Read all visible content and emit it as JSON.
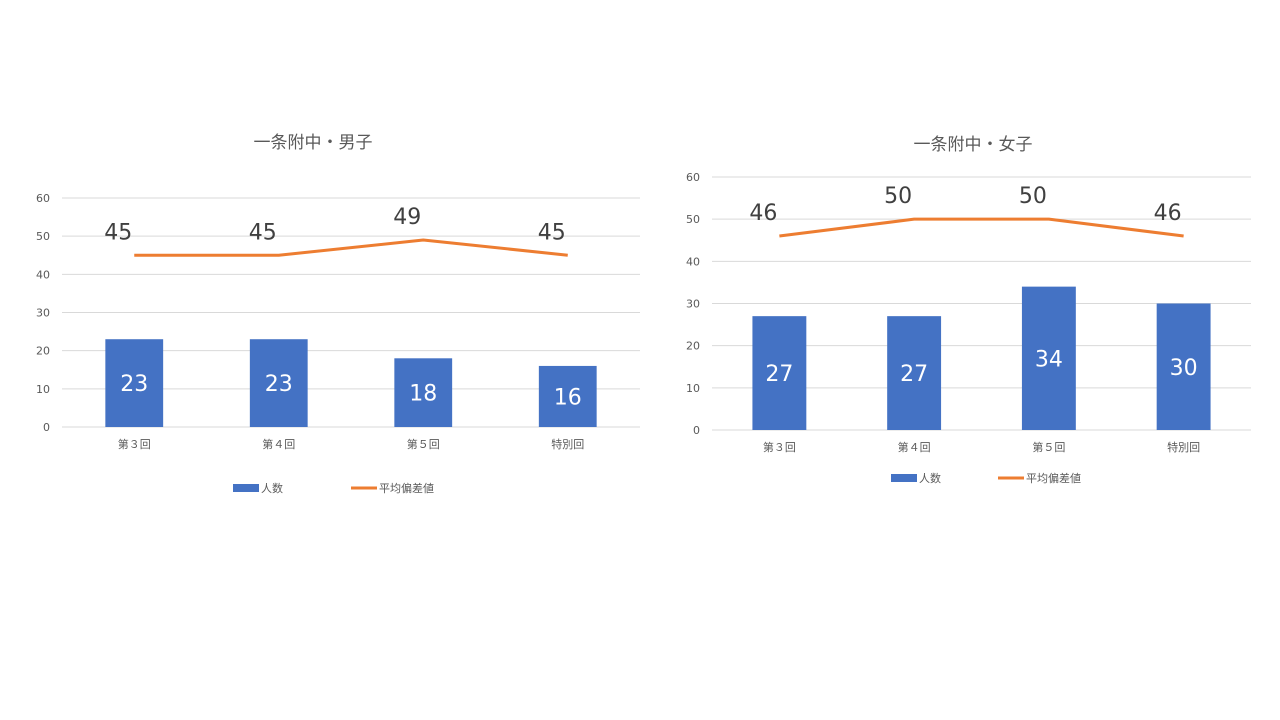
{
  "colors": {
    "bar": "#4472c4",
    "line": "#ed7d31",
    "grid": "#d9d9d9",
    "text": "#595959"
  },
  "chart_data": [
    {
      "type": "bar",
      "title": "一条附中・男子",
      "categories": [
        "第３回",
        "第４回",
        "第５回",
        "特別回"
      ],
      "ylim": [
        0,
        60
      ],
      "yticks": [
        0,
        10,
        20,
        30,
        40,
        50,
        60
      ],
      "grid": true,
      "legend_position": "bottom",
      "series": [
        {
          "name": "人数",
          "type": "bar",
          "values": [
            23,
            23,
            18,
            16
          ]
        },
        {
          "name": "平均偏差値",
          "type": "line",
          "values": [
            45,
            45,
            49,
            45
          ]
        }
      ]
    },
    {
      "type": "bar",
      "title": "一条附中・女子",
      "categories": [
        "第３回",
        "第４回",
        "第５回",
        "特別回"
      ],
      "ylim": [
        0,
        60
      ],
      "yticks": [
        0,
        10,
        20,
        30,
        40,
        50,
        60
      ],
      "grid": true,
      "legend_position": "bottom",
      "series": [
        {
          "name": "人数",
          "type": "bar",
          "values": [
            27,
            27,
            34,
            30
          ]
        },
        {
          "name": "平均偏差値",
          "type": "line",
          "values": [
            46,
            50,
            50,
            46
          ]
        }
      ]
    }
  ]
}
